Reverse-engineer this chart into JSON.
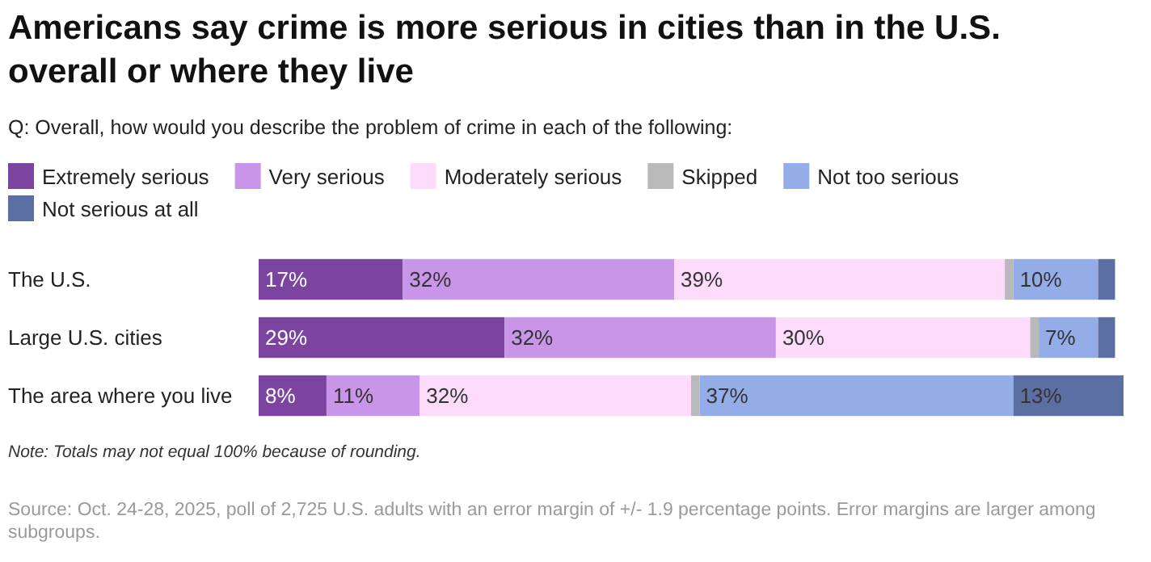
{
  "chart_data": {
    "type": "bar",
    "orientation": "horizontal",
    "stacked": true,
    "title": "Americans say crime is more serious in cities than in the U.S. overall or where they live",
    "subtitle": "Q: Overall, how would you describe the problem of crime in each of the following:",
    "categories": [
      "The U.S.",
      "Large U.S. cities",
      "The area where you live"
    ],
    "xlim": [
      0,
      102
    ],
    "tick_labels": "y",
    "legend": "top",
    "series": [
      {
        "name": "Extremely serious",
        "color": "#7b44a0",
        "values": [
          17,
          29,
          8
        ],
        "value_labels": [
          "17%",
          "29%",
          "8%"
        ]
      },
      {
        "name": "Very serious",
        "color": "#c995e8",
        "values": [
          32,
          32,
          11
        ],
        "value_labels": [
          "32%",
          "32%",
          "11%"
        ]
      },
      {
        "name": "Moderately serious",
        "color": "#fddbfb",
        "values": [
          39,
          30,
          32
        ],
        "value_labels": [
          "39%",
          "30%",
          "32%"
        ]
      },
      {
        "name": "Skipped",
        "color": "#b9b9b9",
        "values": [
          1,
          1,
          1
        ],
        "value_labels": [
          null,
          null,
          null
        ]
      },
      {
        "name": "Not too serious",
        "color": "#94ade9",
        "values": [
          10,
          7,
          37
        ],
        "value_labels": [
          "10%",
          "7%",
          "37%"
        ]
      },
      {
        "name": "Not serious at all",
        "color": "#5b6fa3",
        "values": [
          2,
          2,
          13
        ],
        "value_labels": [
          null,
          null,
          "13%"
        ]
      }
    ],
    "annotations": [
      "Note: Totals may not equal 100% because of rounding.",
      "Source: Oct. 24-28, 2025, poll of 2,725 U.S. adults with an error margin of +/- 1.9 percentage points. Error margins are larger among subgroups."
    ]
  }
}
